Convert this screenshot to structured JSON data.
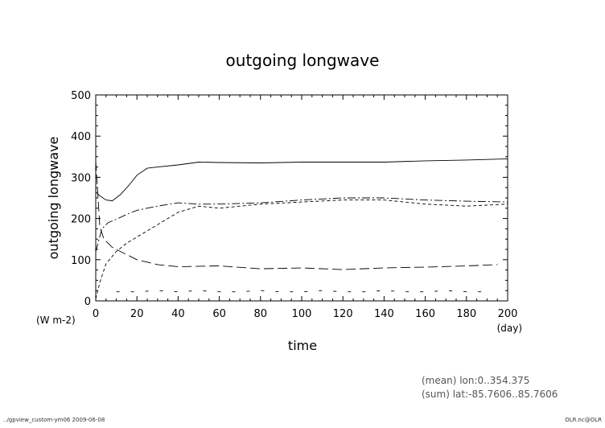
{
  "chart_data": {
    "type": "line",
    "title": "outgoing longwave",
    "xlabel": "time",
    "ylabel": "outgoing longwave",
    "x_unit": "(day)",
    "y_unit": "(W m-2)",
    "xlim": [
      0,
      200
    ],
    "ylim": [
      0,
      500
    ],
    "xticks": [
      0,
      20,
      40,
      60,
      80,
      100,
      120,
      140,
      160,
      180,
      200
    ],
    "yticks": [
      0,
      100,
      200,
      300,
      400,
      500
    ],
    "grid": false,
    "series": [
      {
        "style": "solid",
        "x": [
          0,
          2,
          5,
          8,
          12,
          16,
          20,
          25,
          30,
          40,
          50,
          60,
          80,
          100,
          120,
          140,
          160,
          180,
          200
        ],
        "values": [
          265,
          255,
          245,
          243,
          258,
          280,
          305,
          322,
          325,
          330,
          337,
          336,
          335,
          337,
          337,
          337,
          340,
          342,
          345
        ]
      },
      {
        "style": "dash-dot",
        "x": [
          0,
          3,
          6,
          10,
          15,
          20,
          30,
          40,
          50,
          60,
          80,
          100,
          120,
          140,
          160,
          180,
          200
        ],
        "values": [
          120,
          175,
          190,
          198,
          210,
          220,
          230,
          238,
          235,
          235,
          238,
          245,
          250,
          250,
          245,
          242,
          240
        ]
      },
      {
        "style": "long-dash",
        "x": [
          0,
          2,
          4,
          8,
          12,
          16,
          20,
          30,
          40,
          60,
          80,
          100,
          120,
          140,
          160,
          180,
          195
        ],
        "values": [
          340,
          180,
          150,
          130,
          120,
          110,
          100,
          88,
          83,
          85,
          78,
          80,
          76,
          80,
          82,
          85,
          88
        ]
      },
      {
        "style": "short-dash",
        "x": [
          0,
          2,
          5,
          10,
          15,
          20,
          25,
          30,
          40,
          50,
          60,
          80,
          100,
          120,
          140,
          160,
          180,
          200
        ],
        "values": [
          5,
          45,
          90,
          120,
          140,
          155,
          170,
          185,
          215,
          230,
          225,
          235,
          240,
          245,
          245,
          235,
          230,
          235
        ]
      },
      {
        "style": "dotted",
        "x": [
          10,
          20,
          30,
          40,
          50,
          60,
          70,
          80,
          90,
          100,
          110,
          120,
          130,
          140,
          150,
          160,
          170,
          180,
          190
        ],
        "values": [
          22,
          22,
          25,
          22,
          25,
          22,
          22,
          25,
          22,
          22,
          25,
          22,
          22,
          25,
          22,
          22,
          25,
          22,
          22
        ]
      }
    ]
  },
  "annotations": {
    "mean": "(mean) lon:0..354.375",
    "sum": "(sum) lat:-85.7606..85.7606"
  },
  "footer": {
    "left": "../gpview_custom-ym06  2009-06-08",
    "right": "OLR.nc@OLR"
  }
}
